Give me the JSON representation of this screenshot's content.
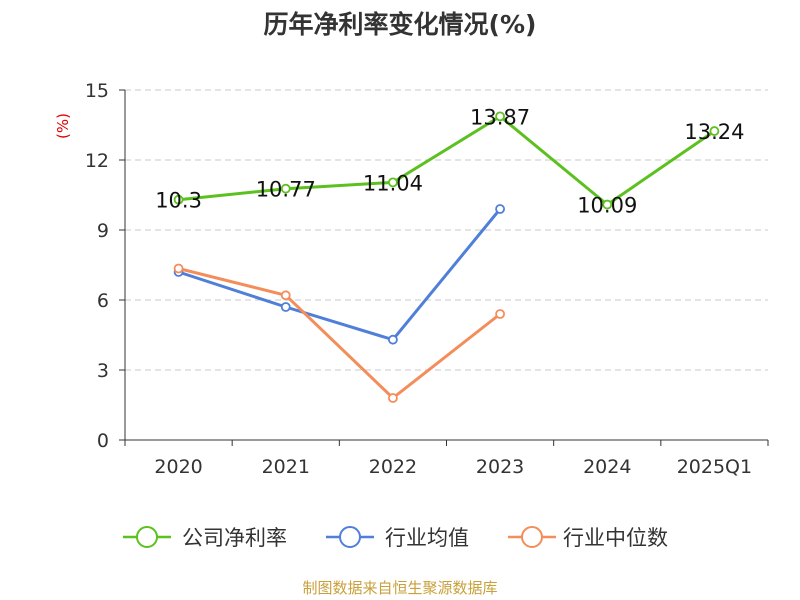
{
  "page": {
    "title": "历年净利率变化情况(%)",
    "source": "制图数据来自恒生聚源数据库"
  },
  "chart_data": {
    "type": "line",
    "title": "历年净利率变化情况(%)",
    "ylabel": "(%)",
    "categories": [
      "2020",
      "2021",
      "2022",
      "2023",
      "2024",
      "2025Q1"
    ],
    "ylim": [
      0,
      15
    ],
    "yticks": [
      0,
      3,
      6,
      9,
      12,
      15
    ],
    "grid": true,
    "legend_position": "bottom",
    "series": [
      {
        "name": "公司净利率",
        "color": "#5cc01e",
        "values": [
          10.3,
          10.77,
          11.04,
          13.87,
          10.09,
          13.24
        ],
        "labels": [
          "10.3",
          "10.77",
          "11.04",
          "13.87",
          "10.09",
          "13.24"
        ]
      },
      {
        "name": "行业均值",
        "color": "#4f7fd9",
        "values": [
          7.2,
          5.7,
          4.3,
          9.9,
          null,
          null
        ],
        "labels": null
      },
      {
        "name": "行业中位数",
        "color": "#f38d5a",
        "values": [
          7.35,
          6.2,
          1.8,
          5.4,
          null,
          null
        ],
        "labels": null
      }
    ]
  }
}
